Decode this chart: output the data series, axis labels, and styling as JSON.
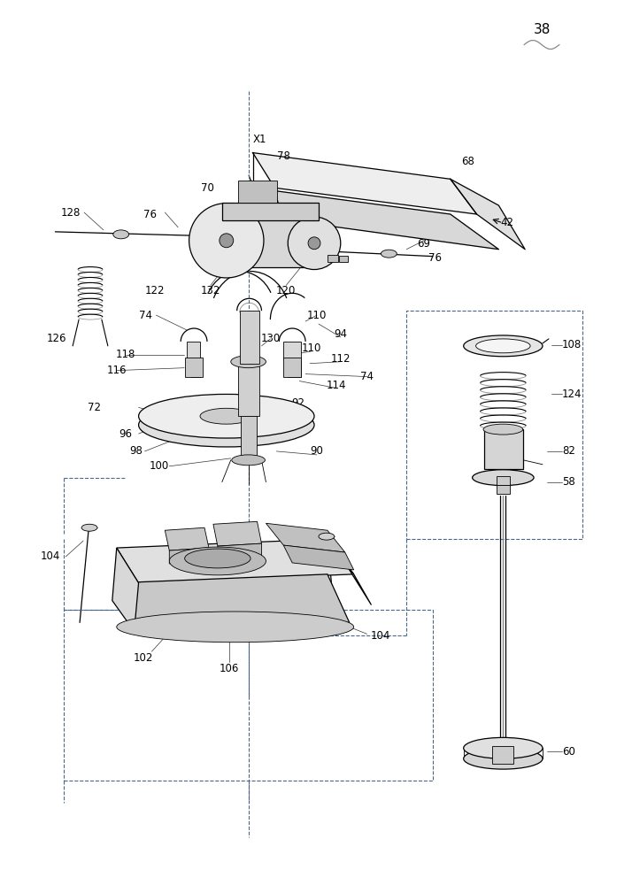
{
  "bg_color": "#ffffff",
  "lc": "#000000",
  "lc_blue": "#4a6688",
  "fig_width": 7.14,
  "fig_height": 10.0
}
